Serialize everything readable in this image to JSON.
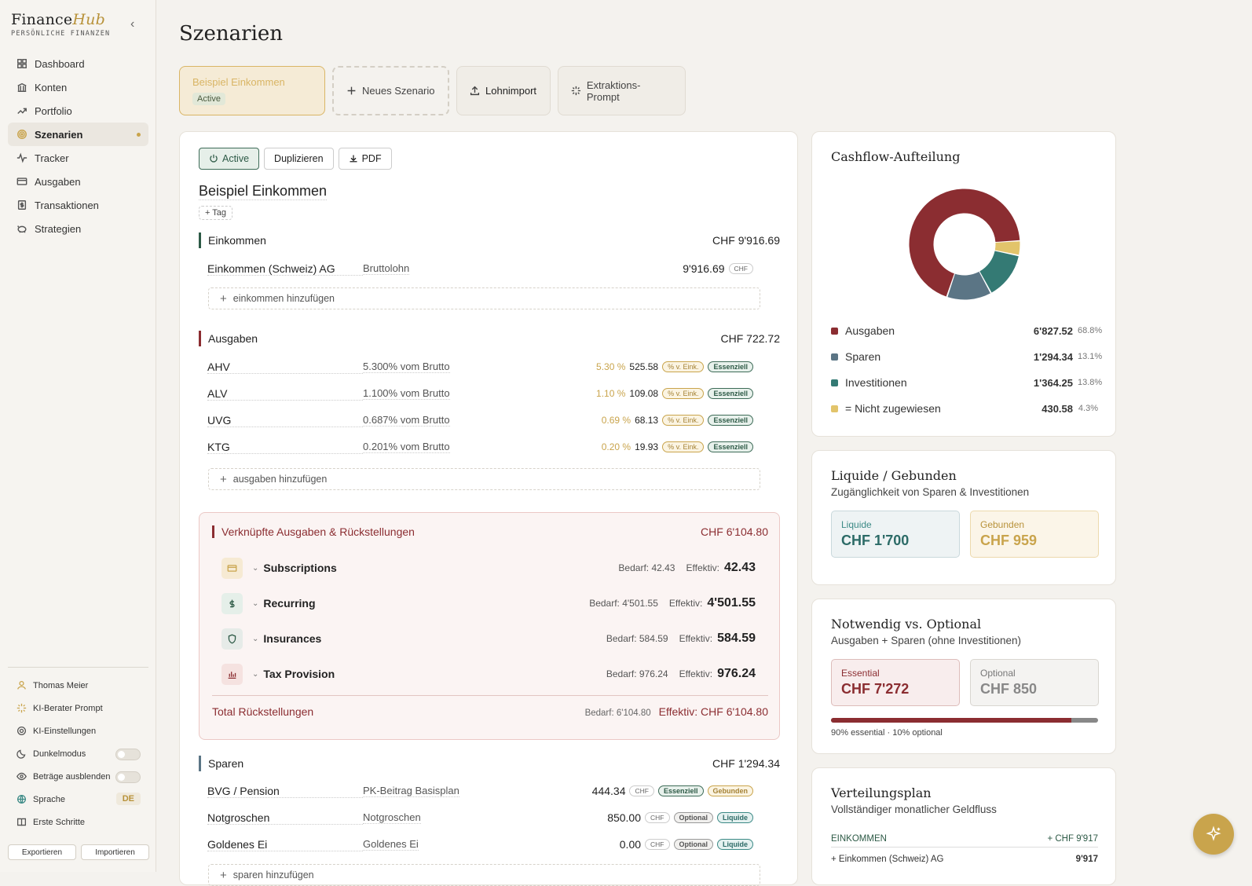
{
  "brand": {
    "name": "Finance",
    "accent": "Hub",
    "subtitle": "PERSÖNLICHE FINANZEN"
  },
  "nav": [
    {
      "label": "Dashboard",
      "icon": "grid-icon"
    },
    {
      "label": "Konten",
      "icon": "bank-icon"
    },
    {
      "label": "Portfolio",
      "icon": "trend-icon"
    },
    {
      "label": "Szenarien",
      "icon": "target-icon"
    },
    {
      "label": "Tracker",
      "icon": "pulse-icon"
    },
    {
      "label": "Ausgaben",
      "icon": "card-icon"
    },
    {
      "label": "Transaktionen",
      "icon": "receipt-icon"
    },
    {
      "label": "Strategien",
      "icon": "piggy-icon"
    }
  ],
  "sidebar_bottom": {
    "user": "Thomas Meier",
    "ai_prompt": "KI-Berater Prompt",
    "ai_settings": "KI-Einstellungen",
    "dark_mode": "Dunkelmodus",
    "hide_amounts": "Beträge ausblenden",
    "language": "Sprache",
    "language_value": "DE",
    "first_steps": "Erste Schritte",
    "export": "Exportieren",
    "import": "Importieren"
  },
  "page": {
    "title": "Szenarien"
  },
  "tabs": {
    "selected_name": "Beispiel Einkommen",
    "selected_badge": "Active",
    "new": "Neues Szenario",
    "import": "Lohnimport",
    "prompt": "Extraktions-Prompt"
  },
  "actions": {
    "active": "Active",
    "duplicate": "Duplizieren",
    "pdf": "PDF"
  },
  "scenario": {
    "name": "Beispiel Einkommen",
    "tag": "+ Tag"
  },
  "income": {
    "title": "Einkommen",
    "total": "CHF 9'916.69",
    "rows": [
      {
        "name": "Einkommen (Schweiz) AG",
        "sub": "Bruttolohn",
        "value": "9'916.69",
        "cur": "CHF"
      }
    ],
    "add": "einkommen hinzufügen"
  },
  "expenses": {
    "title": "Ausgaben",
    "total": "CHF 722.72",
    "rows": [
      {
        "name": "AHV",
        "sub": "5.300% vom Brutto",
        "pct": "5.30 %",
        "value": "525.58",
        "pill1": "% v. Eink.",
        "pill2": "Essenziell"
      },
      {
        "name": "ALV",
        "sub": "1.100% vom Brutto",
        "pct": "1.10 %",
        "value": "109.08",
        "pill1": "% v. Eink.",
        "pill2": "Essenziell"
      },
      {
        "name": "UVG",
        "sub": "0.687% vom Brutto",
        "pct": "0.69 %",
        "value": "68.13",
        "pill1": "% v. Eink.",
        "pill2": "Essenziell"
      },
      {
        "name": "KTG",
        "sub": "0.201% vom Brutto",
        "pct": "0.20 %",
        "value": "19.93",
        "pill1": "% v. Eink.",
        "pill2": "Essenziell"
      }
    ],
    "add": "ausgaben hinzufügen"
  },
  "linked": {
    "title": "Verknüpfte Ausgaben & Rückstellungen",
    "total": "CHF 6'104.80",
    "rows": [
      {
        "name": "Subscriptions",
        "bedarf": "Bedarf: 42.43",
        "eff_label": "Effektiv:",
        "eff": "42.43",
        "icon": "card-icon"
      },
      {
        "name": "Recurring",
        "bedarf": "Bedarf: 4'501.55",
        "eff_label": "Effektiv:",
        "eff": "4'501.55",
        "icon": "dollar-icon"
      },
      {
        "name": "Insurances",
        "bedarf": "Bedarf: 584.59",
        "eff_label": "Effektiv:",
        "eff": "584.59",
        "icon": "shield-icon"
      },
      {
        "name": "Tax Provision",
        "bedarf": "Bedarf: 976.24",
        "eff_label": "Effektiv:",
        "eff": "976.24",
        "icon": "bar-chart-icon"
      }
    ],
    "total_label": "Total Rückstellungen",
    "total_bedarf": "Bedarf: 6'104.80",
    "total_eff": "Effektiv: CHF 6'104.80"
  },
  "savings": {
    "title": "Sparen",
    "total": "CHF 1'294.34",
    "rows": [
      {
        "name": "BVG / Pension",
        "sub": "PK-Beitrag Basisplan",
        "value": "444.34",
        "cur": "CHF",
        "pill1": "Essenziell",
        "pill2": "Gebunden"
      },
      {
        "name": "Notgroschen",
        "sub": "Notgroschen",
        "value": "850.00",
        "cur": "CHF",
        "pill1": "Optional",
        "pill2": "Liquide"
      },
      {
        "name": "Goldenes Ei",
        "sub": "Goldenes Ei",
        "value": "0.00",
        "cur": "CHF",
        "pill1": "Optional",
        "pill2": "Liquide"
      }
    ],
    "add": "sparen hinzufügen"
  },
  "cashflow": {
    "title": "Cashflow-Aufteilung",
    "items": [
      {
        "label": "Ausgaben",
        "value": "6'827.52",
        "pct": "68.8%",
        "color": "#8b2d31",
        "share": 68.8
      },
      {
        "label": "Sparen",
        "value": "1'294.34",
        "pct": "13.1%",
        "color": "#5b7585",
        "share": 13.1
      },
      {
        "label": "Investitionen",
        "value": "1'364.25",
        "pct": "13.8%",
        "color": "#347a74",
        "share": 13.8
      },
      {
        "label": "= Nicht zugewiesen",
        "value": "430.58",
        "pct": "4.3%",
        "color": "#e2c46b",
        "share": 4.3
      }
    ]
  },
  "liquid": {
    "title": "Liquide / Gebunden",
    "subtitle": "Zugänglichkeit von Sparen & Investitionen",
    "liquid_label": "Liquide",
    "liquid_value": "CHF 1'700",
    "bound_label": "Gebunden",
    "bound_value": "CHF 959"
  },
  "necessary": {
    "title": "Notwendig vs. Optional",
    "subtitle": "Ausgaben + Sparen (ohne Investitionen)",
    "ess_label": "Essential",
    "ess_value": "CHF 7'272",
    "opt_label": "Optional",
    "opt_value": "CHF 850",
    "essential_share": 0.9,
    "caption": "90% essential · 10% optional"
  },
  "plan": {
    "title": "Verteilungsplan",
    "subtitle": "Vollständiger monatlicher Geldfluss",
    "section": "EINKOMMEN",
    "section_value": "+ CHF 9'917",
    "row_label": "+ Einkommen (Schweiz) AG",
    "row_value": "9'917"
  }
}
